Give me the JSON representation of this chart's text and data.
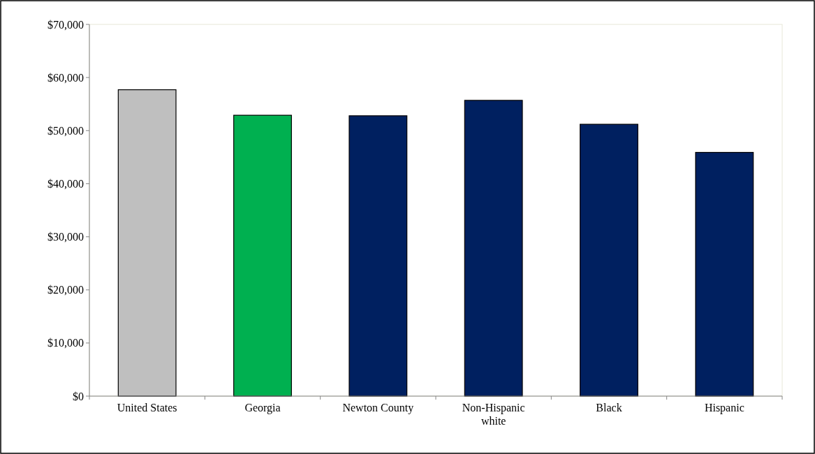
{
  "chart_data": {
    "type": "bar",
    "categories": [
      "United States",
      "Georgia",
      "Newton County",
      "Non-Hispanic white",
      "Black",
      "Hispanic"
    ],
    "values": [
      57700,
      52900,
      52800,
      55700,
      51200,
      45900
    ],
    "colors": [
      "#bfbfbf",
      "#00b050",
      "#002060",
      "#002060",
      "#002060",
      "#002060"
    ],
    "ylim": [
      0,
      70000
    ],
    "yticks": [
      {
        "value": 0,
        "label": "$0"
      },
      {
        "value": 10000,
        "label": "$10,000"
      },
      {
        "value": 20000,
        "label": "$20,000"
      },
      {
        "value": 30000,
        "label": "$30,000"
      },
      {
        "value": 40000,
        "label": "$40,000"
      },
      {
        "value": 50000,
        "label": "$50,000"
      },
      {
        "value": 60000,
        "label": "$60,000"
      },
      {
        "value": 70000,
        "label": "$70,000"
      }
    ],
    "grid": false
  }
}
